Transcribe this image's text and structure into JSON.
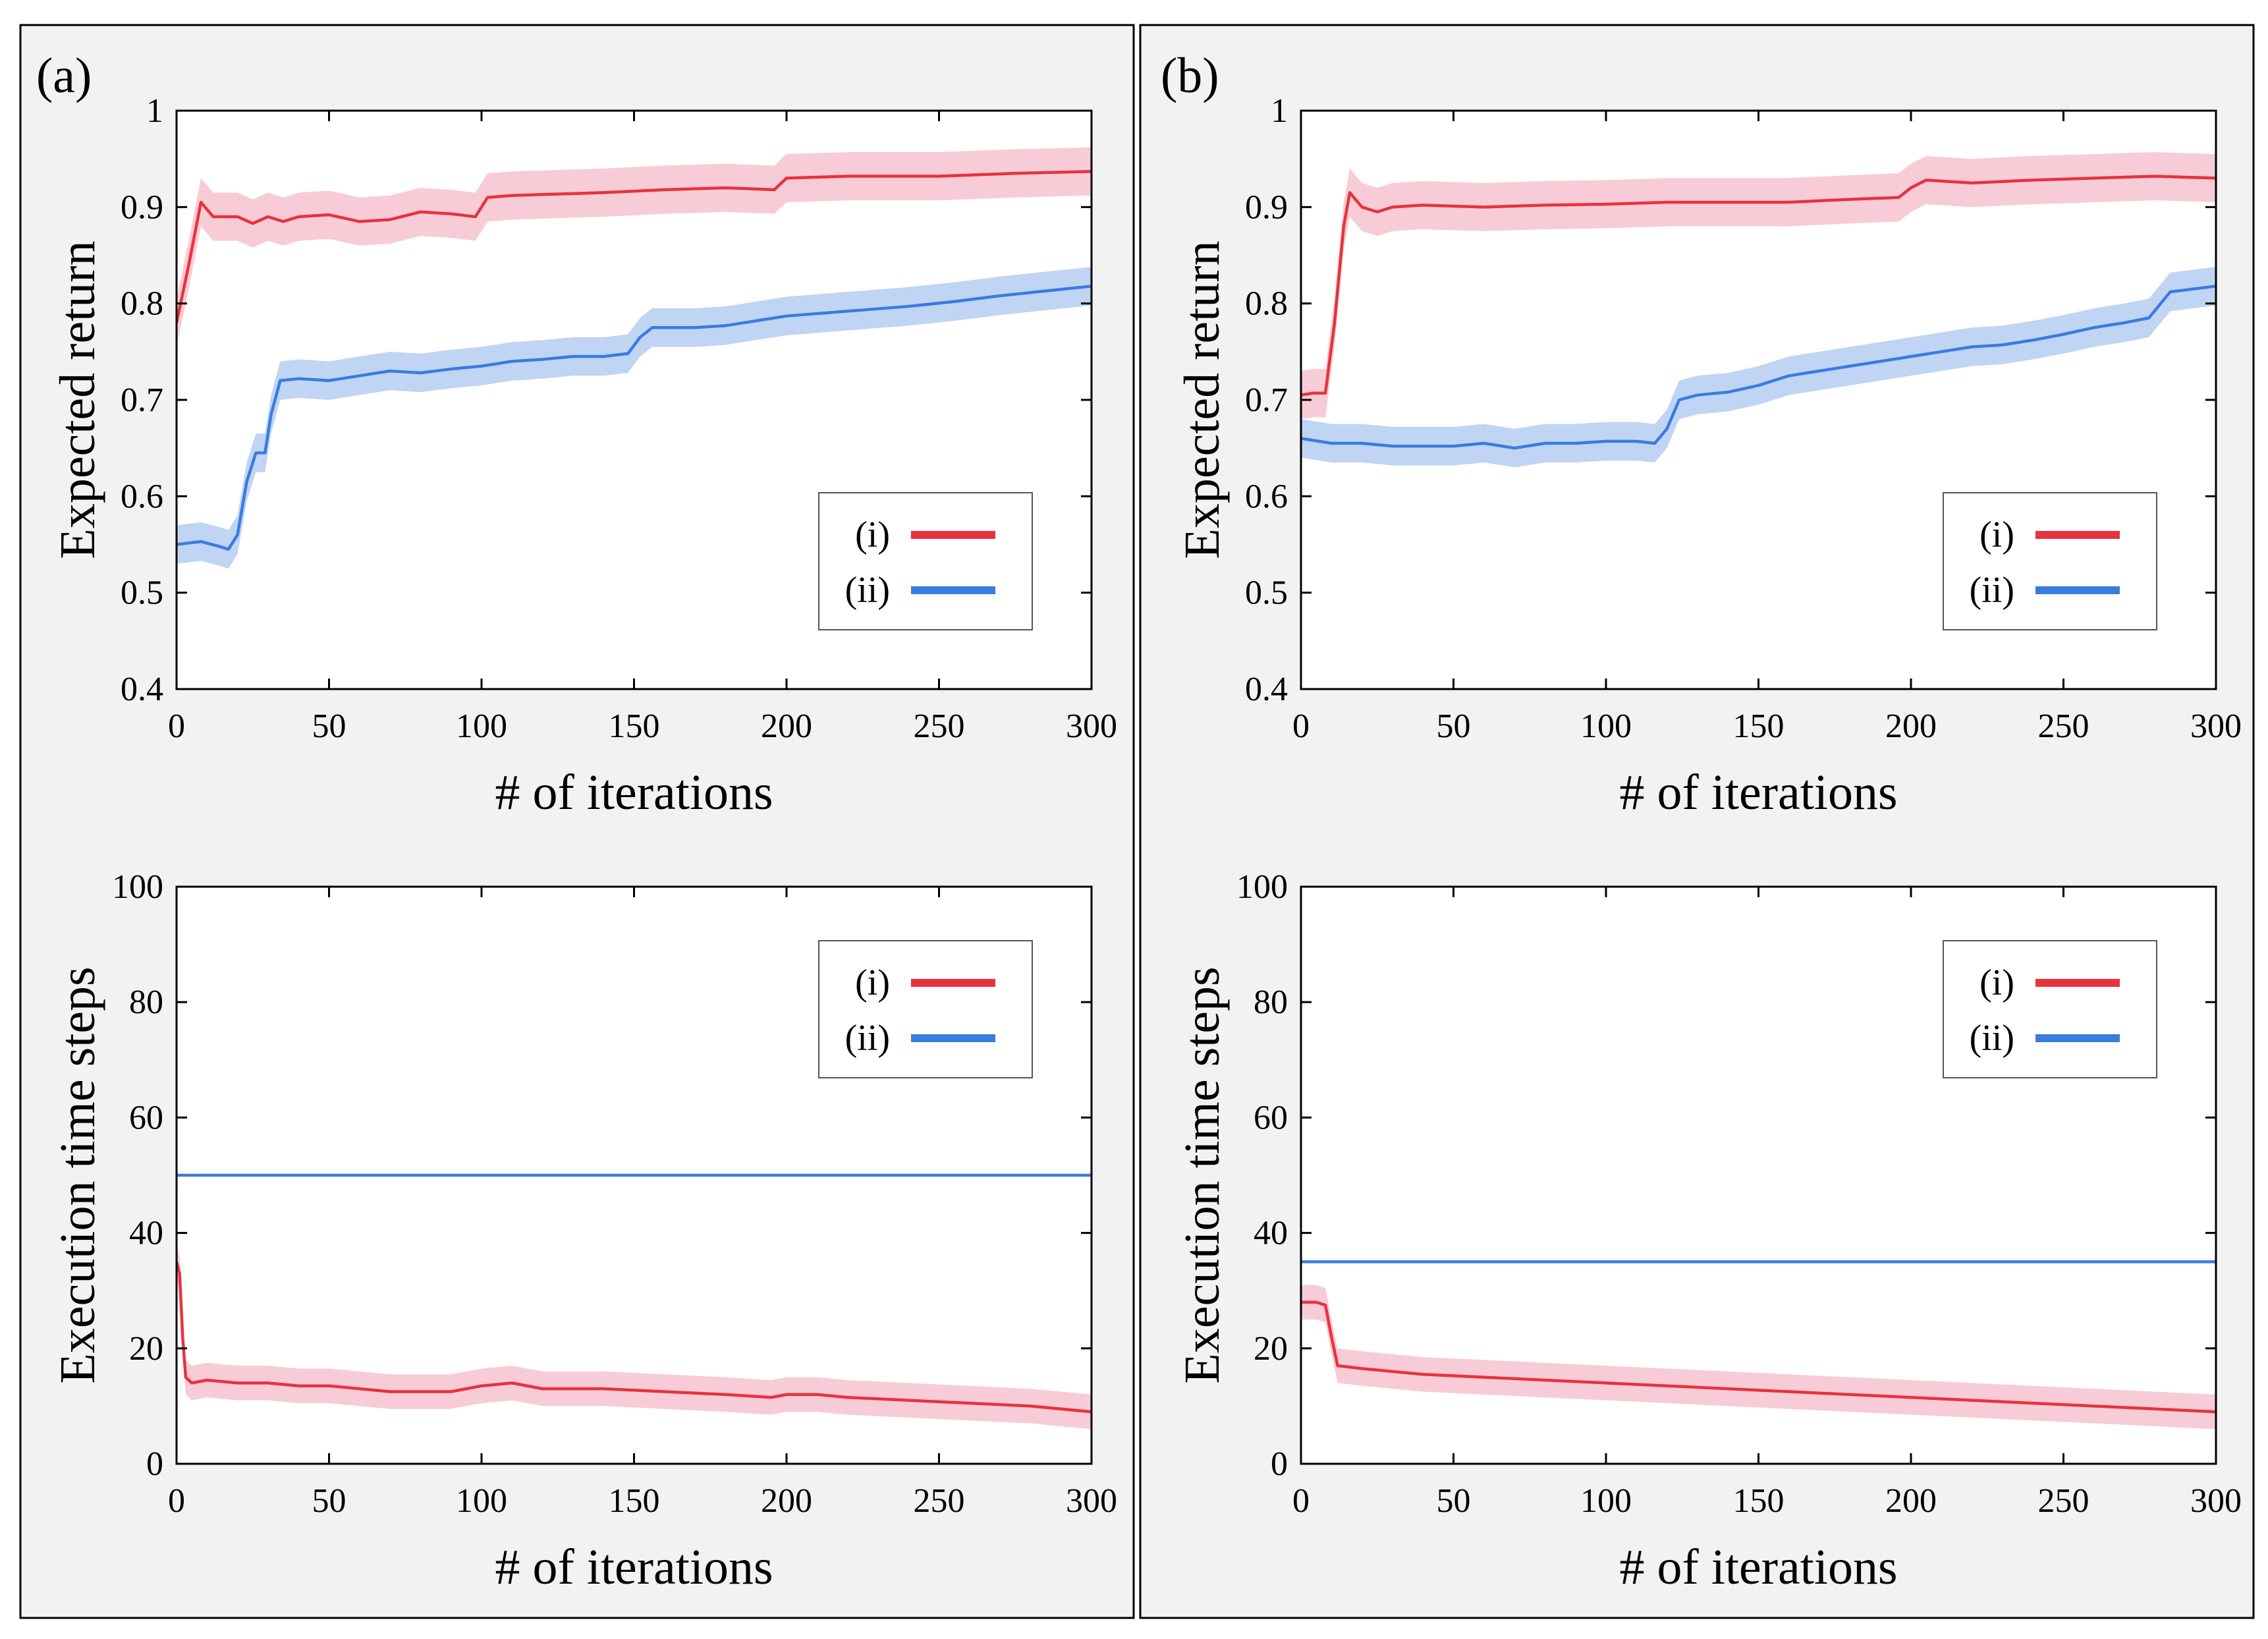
{
  "colors": {
    "red": "#e8323c",
    "red_band": "#f6c3cf",
    "blue": "#3a7be0",
    "blue_band": "#b5cdf2",
    "panel_bg": "#f2f2f2",
    "axes_bg": "#ffffff"
  },
  "panels": [
    {
      "label": "(a)"
    },
    {
      "label": "(b)"
    }
  ],
  "chart_data": [
    {
      "panel": "(a)",
      "type": "line",
      "xlabel": "# of iterations",
      "ylabel": "Expected return",
      "xlim": [
        0,
        300
      ],
      "ylim": [
        0.4,
        1
      ],
      "xticks": [
        "0",
        "50",
        "100",
        "150",
        "200",
        "250",
        "300"
      ],
      "yticks": [
        "0.4",
        "0.5",
        "0.6",
        "0.7",
        "0.8",
        "0.9",
        "1"
      ],
      "legend": {
        "placement": "lower-right",
        "entries": [
          "(i)",
          "(ii)"
        ]
      },
      "series": [
        {
          "name": "(i)",
          "color": "red",
          "band": 0.025,
          "points": [
            [
              0,
              0.78
            ],
            [
              4,
              0.84
            ],
            [
              8,
              0.905
            ],
            [
              12,
              0.89
            ],
            [
              20,
              0.89
            ],
            [
              25,
              0.883
            ],
            [
              30,
              0.89
            ],
            [
              35,
              0.885
            ],
            [
              40,
              0.89
            ],
            [
              50,
              0.892
            ],
            [
              60,
              0.885
            ],
            [
              70,
              0.887
            ],
            [
              80,
              0.895
            ],
            [
              90,
              0.893
            ],
            [
              98,
              0.89
            ],
            [
              102,
              0.91
            ],
            [
              110,
              0.912
            ],
            [
              120,
              0.913
            ],
            [
              140,
              0.915
            ],
            [
              160,
              0.918
            ],
            [
              180,
              0.92
            ],
            [
              196,
              0.918
            ],
            [
              200,
              0.93
            ],
            [
              220,
              0.932
            ],
            [
              250,
              0.932
            ],
            [
              275,
              0.935
            ],
            [
              300,
              0.937
            ]
          ]
        },
        {
          "name": "(ii)",
          "color": "blue",
          "band": 0.02,
          "points": [
            [
              0,
              0.55
            ],
            [
              8,
              0.553
            ],
            [
              14,
              0.548
            ],
            [
              17,
              0.545
            ],
            [
              20,
              0.56
            ],
            [
              23,
              0.615
            ],
            [
              26,
              0.645
            ],
            [
              29,
              0.645
            ],
            [
              31,
              0.685
            ],
            [
              34,
              0.72
            ],
            [
              40,
              0.722
            ],
            [
              50,
              0.72
            ],
            [
              60,
              0.725
            ],
            [
              70,
              0.73
            ],
            [
              80,
              0.728
            ],
            [
              90,
              0.732
            ],
            [
              100,
              0.735
            ],
            [
              110,
              0.74
            ],
            [
              120,
              0.742
            ],
            [
              130,
              0.745
            ],
            [
              140,
              0.745
            ],
            [
              148,
              0.748
            ],
            [
              152,
              0.765
            ],
            [
              156,
              0.775
            ],
            [
              170,
              0.775
            ],
            [
              180,
              0.777
            ],
            [
              190,
              0.782
            ],
            [
              200,
              0.787
            ],
            [
              220,
              0.792
            ],
            [
              240,
              0.797
            ],
            [
              255,
              0.802
            ],
            [
              270,
              0.808
            ],
            [
              285,
              0.813
            ],
            [
              300,
              0.818
            ]
          ]
        }
      ]
    },
    {
      "panel": "(b)",
      "type": "line",
      "xlabel": "# of iterations",
      "ylabel": "Expected return",
      "xlim": [
        0,
        300
      ],
      "ylim": [
        0.4,
        1
      ],
      "xticks": [
        "0",
        "50",
        "100",
        "150",
        "200",
        "250",
        "300"
      ],
      "yticks": [
        "0.4",
        "0.5",
        "0.6",
        "0.7",
        "0.8",
        "0.9",
        "1"
      ],
      "legend": {
        "placement": "lower-right",
        "entries": [
          "(i)",
          "(ii)"
        ]
      },
      "series": [
        {
          "name": "(i)",
          "color": "red",
          "band": 0.025,
          "points": [
            [
              0,
              0.705
            ],
            [
              4,
              0.707
            ],
            [
              8,
              0.707
            ],
            [
              11,
              0.78
            ],
            [
              14,
              0.88
            ],
            [
              16,
              0.915
            ],
            [
              20,
              0.9
            ],
            [
              25,
              0.895
            ],
            [
              30,
              0.9
            ],
            [
              40,
              0.902
            ],
            [
              60,
              0.9
            ],
            [
              80,
              0.902
            ],
            [
              100,
              0.903
            ],
            [
              120,
              0.905
            ],
            [
              140,
              0.905
            ],
            [
              160,
              0.905
            ],
            [
              180,
              0.908
            ],
            [
              196,
              0.91
            ],
            [
              200,
              0.92
            ],
            [
              205,
              0.928
            ],
            [
              220,
              0.925
            ],
            [
              240,
              0.928
            ],
            [
              260,
              0.93
            ],
            [
              280,
              0.932
            ],
            [
              300,
              0.93
            ]
          ]
        },
        {
          "name": "(ii)",
          "color": "blue",
          "band": 0.02,
          "points": [
            [
              0,
              0.66
            ],
            [
              10,
              0.655
            ],
            [
              20,
              0.655
            ],
            [
              30,
              0.652
            ],
            [
              50,
              0.652
            ],
            [
              60,
              0.655
            ],
            [
              70,
              0.65
            ],
            [
              80,
              0.655
            ],
            [
              90,
              0.655
            ],
            [
              100,
              0.657
            ],
            [
              110,
              0.657
            ],
            [
              116,
              0.655
            ],
            [
              120,
              0.67
            ],
            [
              124,
              0.7
            ],
            [
              130,
              0.705
            ],
            [
              140,
              0.708
            ],
            [
              150,
              0.715
            ],
            [
              160,
              0.725
            ],
            [
              170,
              0.73
            ],
            [
              180,
              0.735
            ],
            [
              190,
              0.74
            ],
            [
              200,
              0.745
            ],
            [
              210,
              0.75
            ],
            [
              220,
              0.755
            ],
            [
              230,
              0.757
            ],
            [
              240,
              0.762
            ],
            [
              250,
              0.768
            ],
            [
              260,
              0.775
            ],
            [
              270,
              0.78
            ],
            [
              278,
              0.785
            ],
            [
              285,
              0.812
            ],
            [
              300,
              0.818
            ]
          ]
        }
      ]
    },
    {
      "panel": "(a)",
      "type": "line",
      "xlabel": "# of iterations",
      "ylabel": "Execution time steps",
      "xlim": [
        0,
        300
      ],
      "ylim": [
        0,
        100
      ],
      "xticks": [
        "0",
        "50",
        "100",
        "150",
        "200",
        "250",
        "300"
      ],
      "yticks": [
        "0",
        "20",
        "40",
        "60",
        "80",
        "100"
      ],
      "legend": {
        "placement": "top-right",
        "entries": [
          "(i)",
          "(ii)"
        ]
      },
      "series": [
        {
          "name": "(i)",
          "color": "red",
          "band": 3,
          "points": [
            [
              0,
              35
            ],
            [
              1,
              33
            ],
            [
              2,
              22
            ],
            [
              3,
              15
            ],
            [
              5,
              14
            ],
            [
              10,
              14.5
            ],
            [
              20,
              14
            ],
            [
              30,
              14
            ],
            [
              40,
              13.5
            ],
            [
              50,
              13.5
            ],
            [
              60,
              13
            ],
            [
              70,
              12.5
            ],
            [
              80,
              12.5
            ],
            [
              90,
              12.5
            ],
            [
              100,
              13.5
            ],
            [
              110,
              14
            ],
            [
              120,
              13
            ],
            [
              140,
              13
            ],
            [
              160,
              12.5
            ],
            [
              180,
              12
            ],
            [
              195,
              11.5
            ],
            [
              200,
              12
            ],
            [
              210,
              12
            ],
            [
              220,
              11.5
            ],
            [
              240,
              11
            ],
            [
              260,
              10.5
            ],
            [
              280,
              10
            ],
            [
              300,
              9
            ]
          ]
        },
        {
          "name": "(ii)",
          "color": "blue",
          "band": 0,
          "points": [
            [
              0,
              50
            ],
            [
              300,
              50
            ]
          ]
        }
      ]
    },
    {
      "panel": "(b)",
      "type": "line",
      "xlabel": "# of iterations",
      "ylabel": "Execution time steps",
      "xlim": [
        0,
        300
      ],
      "ylim": [
        0,
        100
      ],
      "xticks": [
        "0",
        "50",
        "100",
        "150",
        "200",
        "250",
        "300"
      ],
      "yticks": [
        "0",
        "20",
        "40",
        "60",
        "80",
        "100"
      ],
      "legend": {
        "placement": "top-right",
        "entries": [
          "(i)",
          "(ii)"
        ]
      },
      "series": [
        {
          "name": "(i)",
          "color": "red",
          "band": 3,
          "points": [
            [
              0,
              28
            ],
            [
              5,
              28
            ],
            [
              8,
              27.5
            ],
            [
              10,
              22
            ],
            [
              12,
              17
            ],
            [
              20,
              16.5
            ],
            [
              30,
              16
            ],
            [
              40,
              15.5
            ],
            [
              60,
              15
            ],
            [
              80,
              14.5
            ],
            [
              100,
              14
            ],
            [
              120,
              13.5
            ],
            [
              140,
              13
            ],
            [
              160,
              12.5
            ],
            [
              180,
              12
            ],
            [
              200,
              11.5
            ],
            [
              220,
              11
            ],
            [
              240,
              10.5
            ],
            [
              260,
              10
            ],
            [
              280,
              9.5
            ],
            [
              300,
              9
            ]
          ]
        },
        {
          "name": "(ii)",
          "color": "blue",
          "band": 0,
          "points": [
            [
              0,
              35
            ],
            [
              300,
              35
            ]
          ]
        }
      ]
    }
  ]
}
